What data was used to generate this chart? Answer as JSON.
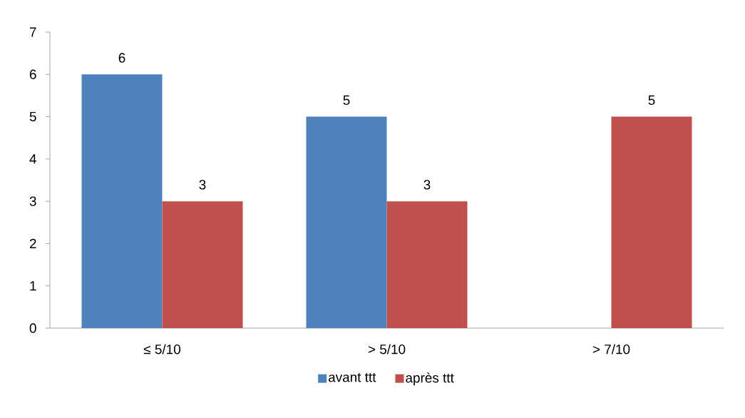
{
  "chart_data": {
    "type": "bar",
    "categories": [
      "≤ 5/10",
      "> 5/10",
      "> 7/10"
    ],
    "series": [
      {
        "name": "avant ttt",
        "color": "#4f81bd",
        "values": [
          6,
          5,
          null
        ]
      },
      {
        "name": "après ttt",
        "color": "#c0504d",
        "values": [
          3,
          3,
          5
        ]
      }
    ],
    "ylim": [
      0,
      7
    ],
    "yticks": [
      0,
      1,
      2,
      3,
      4,
      5,
      6,
      7
    ],
    "grid": false,
    "legend": "bottom",
    "data_labels": true
  }
}
